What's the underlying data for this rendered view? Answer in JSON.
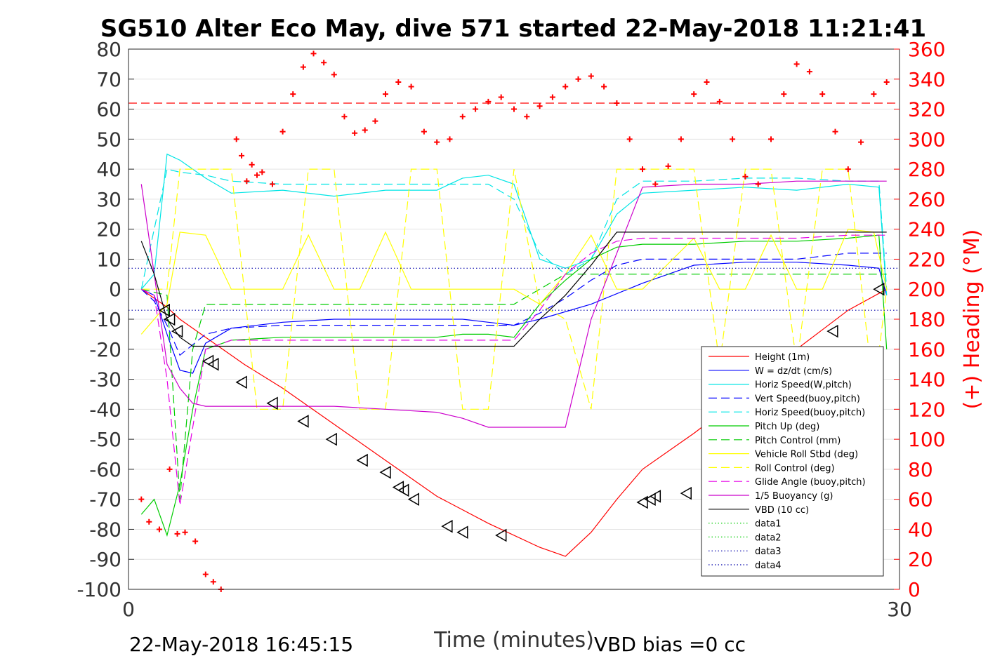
{
  "chart_data": {
    "type": "line",
    "title": "SG510 Alter Eco May, dive 571 started 22-May-2018 11:21:41",
    "xlabel": "Time (minutes)",
    "ylabel_right": "(+) Heading (°M)",
    "xlim": [
      0,
      30
    ],
    "ylim_left": [
      -100,
      80
    ],
    "ylim_right": [
      0,
      360
    ],
    "x_ticks": [
      "0",
      "30"
    ],
    "y_ticks_left": [
      "80",
      "70",
      "60",
      "50",
      "40",
      "30",
      "20",
      "10",
      "0",
      "-10",
      "-20",
      "-30",
      "-40",
      "-50",
      "-60",
      "-70",
      "-80",
      "-90",
      "-100"
    ],
    "y_ticks_right": [
      "360",
      "340",
      "320",
      "300",
      "280",
      "260",
      "240",
      "220",
      "200",
      "180",
      "160",
      "140",
      "120",
      "100",
      "80",
      "60",
      "40",
      "20",
      "0"
    ],
    "grid": true,
    "legend_position": "lower-right",
    "footer_left": "22-May-2018 16:45:15",
    "footer_right": "VBD bias =0 cc",
    "series": [
      {
        "name": "Height (1m)",
        "color": "#ff0000",
        "style": "solid",
        "x": [
          0.5,
          1.5,
          2.0,
          3.0,
          4.5,
          6,
          8,
          10,
          12,
          14,
          16,
          17,
          18,
          19,
          20,
          22,
          24,
          26,
          28,
          29.5
        ],
        "y": [
          0,
          -6,
          -10,
          -16,
          -25,
          -33,
          -45,
          -57,
          -69,
          -78,
          -86,
          -89,
          -81,
          -70,
          -60,
          -48,
          -35,
          -20,
          -7,
          0
        ]
      },
      {
        "name": "W = dz/dt (cm/s)",
        "color": "#0000ff",
        "style": "solid",
        "x": [
          0.5,
          1,
          1.5,
          2,
          2.5,
          3,
          4,
          6,
          8,
          10,
          12,
          13,
          14,
          15,
          16,
          18,
          20,
          22,
          24,
          26,
          28,
          29.2,
          29.5
        ],
        "y": [
          0,
          -2,
          -15,
          -27,
          -28,
          -18,
          -13,
          -11,
          -10,
          -10,
          -10,
          -10,
          -11,
          -12,
          -10,
          -5,
          2,
          8,
          9,
          9,
          8,
          7,
          -2
        ]
      },
      {
        "name": "Horiz Speed(W,pitch)",
        "color": "#00e5e5",
        "style": "solid",
        "x": [
          0.5,
          1,
          1.5,
          2,
          2.5,
          3,
          4,
          6,
          8,
          10,
          12,
          13,
          14,
          15,
          16,
          17,
          18,
          19,
          20,
          22,
          24,
          26,
          28,
          29.2,
          29.5
        ],
        "y": [
          0,
          5,
          45,
          43,
          40,
          37,
          32,
          33,
          31,
          33,
          33,
          37,
          38,
          35,
          10,
          7,
          10,
          25,
          32,
          33,
          34,
          33,
          35,
          34,
          -2
        ]
      },
      {
        "name": "Vert Speed(buoy,pitch)",
        "color": "#0000ff",
        "style": "dash",
        "x": [
          0.5,
          1,
          1.5,
          2,
          3,
          4,
          6,
          8,
          10,
          12,
          14,
          15,
          16,
          17,
          18,
          19,
          20,
          22,
          24,
          26,
          28,
          29.5
        ],
        "y": [
          0,
          -4,
          -12,
          -22,
          -15,
          -13,
          -12,
          -12,
          -12,
          -12,
          -12,
          -12,
          -8,
          -3,
          3,
          8,
          10,
          10,
          10,
          10,
          12,
          12
        ]
      },
      {
        "name": "Horiz Speed(buoy,pitch)",
        "color": "#00e5e5",
        "style": "dash",
        "x": [
          0.5,
          1,
          1.5,
          2,
          3,
          4,
          6,
          8,
          10,
          12,
          14,
          15,
          16,
          17,
          18,
          19,
          20,
          22,
          24,
          26,
          28,
          29.2,
          29.5
        ],
        "y": [
          0,
          20,
          40,
          39,
          38,
          36,
          35,
          35,
          35,
          35,
          35,
          30,
          12,
          5,
          10,
          30,
          36,
          36,
          37,
          37,
          36,
          36,
          0
        ]
      },
      {
        "name": "Pitch Up (deg)",
        "color": "#00cc00",
        "style": "solid",
        "x": [
          0.5,
          1,
          1.5,
          2,
          2.5,
          3,
          4,
          6,
          8,
          10,
          12,
          13,
          14,
          15,
          16,
          17,
          18,
          19,
          20,
          22,
          24,
          26,
          28,
          29.2,
          29.5
        ],
        "y": [
          -75,
          -70,
          -82,
          -65,
          -40,
          -20,
          -17,
          -16,
          -16,
          -16,
          -16,
          -15,
          -15,
          -16,
          -5,
          3,
          10,
          14,
          15,
          15,
          16,
          16,
          17,
          18,
          -20
        ]
      },
      {
        "name": "Pitch Control (mm)",
        "color": "#00cc00",
        "style": "dash",
        "x": [
          0.5,
          1.5,
          2.0,
          2.5,
          3,
          5,
          10,
          14,
          15,
          16,
          17,
          18,
          20,
          25,
          29.5
        ],
        "y": [
          0,
          -2,
          -70,
          -20,
          -5,
          -5,
          -5,
          -5,
          -5,
          0,
          5,
          5,
          5,
          5,
          5
        ]
      },
      {
        "name": "Vehicle Roll Stbd (deg)",
        "color": "#ffff00",
        "style": "solid",
        "x": [
          0.5,
          1.5,
          2,
          3,
          4,
          6,
          7,
          8,
          9,
          10,
          11,
          12,
          13,
          14,
          15,
          16,
          17,
          18,
          19,
          20,
          22,
          23,
          24,
          25,
          26,
          27,
          28,
          29,
          29.5
        ],
        "y": [
          -15,
          -5,
          19,
          18,
          0,
          0,
          18,
          0,
          0,
          19,
          0,
          0,
          0,
          0,
          0,
          -5,
          5,
          18,
          0,
          0,
          17,
          0,
          0,
          18,
          0,
          0,
          20,
          19,
          0
        ]
      },
      {
        "name": "Roll Control (deg)",
        "color": "#ffff00",
        "style": "dash",
        "x": [
          0.5,
          1.5,
          2,
          2.5,
          3,
          4,
          5,
          6,
          7,
          8,
          9,
          10,
          11,
          12,
          13,
          14,
          15,
          16,
          17,
          18,
          19,
          20,
          22,
          23,
          24,
          25,
          26,
          27,
          28,
          29,
          29.5
        ],
        "y": [
          0,
          0,
          40,
          40,
          40,
          40,
          -40,
          -40,
          40,
          40,
          -40,
          -40,
          40,
          40,
          -40,
          -40,
          40,
          -5,
          -10,
          -40,
          40,
          40,
          40,
          -25,
          40,
          40,
          -25,
          40,
          40,
          -35,
          0
        ]
      },
      {
        "name": "Glide Angle (buoy,pitch)",
        "color": "#e600e6",
        "style": "dash",
        "x": [
          0.5,
          1,
          1.5,
          2,
          3,
          4,
          6,
          8,
          10,
          12,
          14,
          15,
          16,
          17,
          18,
          19,
          20,
          22,
          24,
          26,
          28,
          29.5
        ],
        "y": [
          0,
          -2,
          -30,
          -72,
          -20,
          -17,
          -17,
          -17,
          -17,
          -17,
          -17,
          -17,
          -7,
          5,
          12,
          16,
          17,
          17,
          17,
          17,
          18,
          18
        ]
      },
      {
        "name": "1/5 Buoyancy (g)",
        "color": "#cc00cc",
        "style": "solid",
        "x": [
          0.5,
          1.5,
          2.0,
          2.5,
          3,
          5,
          8,
          10,
          12,
          13,
          14,
          15,
          16,
          17,
          18,
          20,
          22,
          24,
          26,
          28,
          29.5
        ],
        "y": [
          35,
          -25,
          -33,
          -38,
          -39,
          -39,
          -39,
          -40,
          -41,
          -43,
          -46,
          -46,
          -46,
          -46,
          -10,
          34,
          35,
          35,
          36,
          36,
          36
        ]
      },
      {
        "name": "VBD (10 cc)",
        "color": "#000000",
        "style": "solid",
        "x": [
          0.5,
          1,
          1.5,
          2,
          2.5,
          3,
          5,
          10,
          14,
          15,
          16,
          17,
          18,
          19,
          20,
          22,
          25,
          28,
          29.5
        ],
        "y": [
          16,
          5,
          -10,
          -16,
          -19,
          -19,
          -19,
          -19,
          -19,
          -19,
          -10,
          -2,
          8,
          19,
          19,
          19,
          19,
          19,
          19
        ]
      },
      {
        "name": "data1",
        "color": "#00cc00",
        "style": "dot",
        "x": [],
        "y": []
      },
      {
        "name": "data2",
        "color": "#00cc00",
        "style": "dot",
        "x": [],
        "y": []
      },
      {
        "name": "data3",
        "color": "#0000aa",
        "style": "dot",
        "x": [
          0,
          30
        ],
        "y": [
          7,
          7
        ]
      },
      {
        "name": "data4",
        "color": "#0000aa",
        "style": "dot",
        "x": [
          0,
          30
        ],
        "y": [
          -7,
          -7
        ]
      }
    ],
    "reference_lines": [
      {
        "axis": "left",
        "y": 62,
        "color": "#ff0000",
        "style": "dash"
      }
    ],
    "heading_markers": {
      "color": "#ff0000",
      "axis": "right",
      "x": [
        0.5,
        0.8,
        1.2,
        1.6,
        1.9,
        2.2,
        2.6,
        3.0,
        3.3,
        3.6,
        4.2,
        4.4,
        4.6,
        4.8,
        5.0,
        5.2,
        5.6,
        6.0,
        6.4,
        6.8,
        7.2,
        7.6,
        8.0,
        8.4,
        8.8,
        9.2,
        9.6,
        10.0,
        10.5,
        11.0,
        11.5,
        12.0,
        12.5,
        13.0,
        13.5,
        14.0,
        14.5,
        15.0,
        15.5,
        16.0,
        16.5,
        17.0,
        17.5,
        18.0,
        18.5,
        19.0,
        19.5,
        20.0,
        20.5,
        21.0,
        21.5,
        22.0,
        22.5,
        23.0,
        23.5,
        24.0,
        24.5,
        25.0,
        25.5,
        26.0,
        26.5,
        27.0,
        27.5,
        28.0,
        28.5,
        29.0,
        29.5
      ],
      "y": [
        60,
        45,
        40,
        80,
        37,
        38,
        32,
        10,
        5,
        0,
        300,
        289,
        272,
        283,
        276,
        278,
        270,
        305,
        330,
        348,
        357,
        351,
        343,
        315,
        304,
        306,
        312,
        330,
        338,
        335,
        305,
        298,
        300,
        315,
        320,
        325,
        328,
        320,
        315,
        322,
        328,
        335,
        340,
        342,
        335,
        324,
        300,
        280,
        270,
        282,
        300,
        330,
        338,
        325,
        300,
        275,
        270,
        300,
        330,
        350,
        345,
        330,
        305,
        280,
        298,
        330,
        338
      ]
    },
    "dive_markers": {
      "x": [
        1.4,
        1.6,
        1.9,
        3.1,
        3.3,
        4.4,
        5.6,
        6.8,
        7.9,
        9.1,
        10.0,
        10.5,
        10.7,
        11.1,
        12.4,
        13.0,
        14.5,
        20.0,
        20.3,
        20.5,
        21.7,
        22.6,
        25.0,
        25.2,
        26.5,
        27.2,
        27.4,
        29.2
      ],
      "y": [
        -7,
        -10,
        -14,
        -24,
        -25,
        -31,
        -38,
        -44,
        -50,
        -57,
        -61,
        -66,
        -67,
        -70,
        -79,
        -81,
        -82,
        -71,
        -70,
        -69,
        -68,
        -63,
        -45,
        -42,
        -34,
        -32,
        -14,
        0
      ]
    }
  }
}
